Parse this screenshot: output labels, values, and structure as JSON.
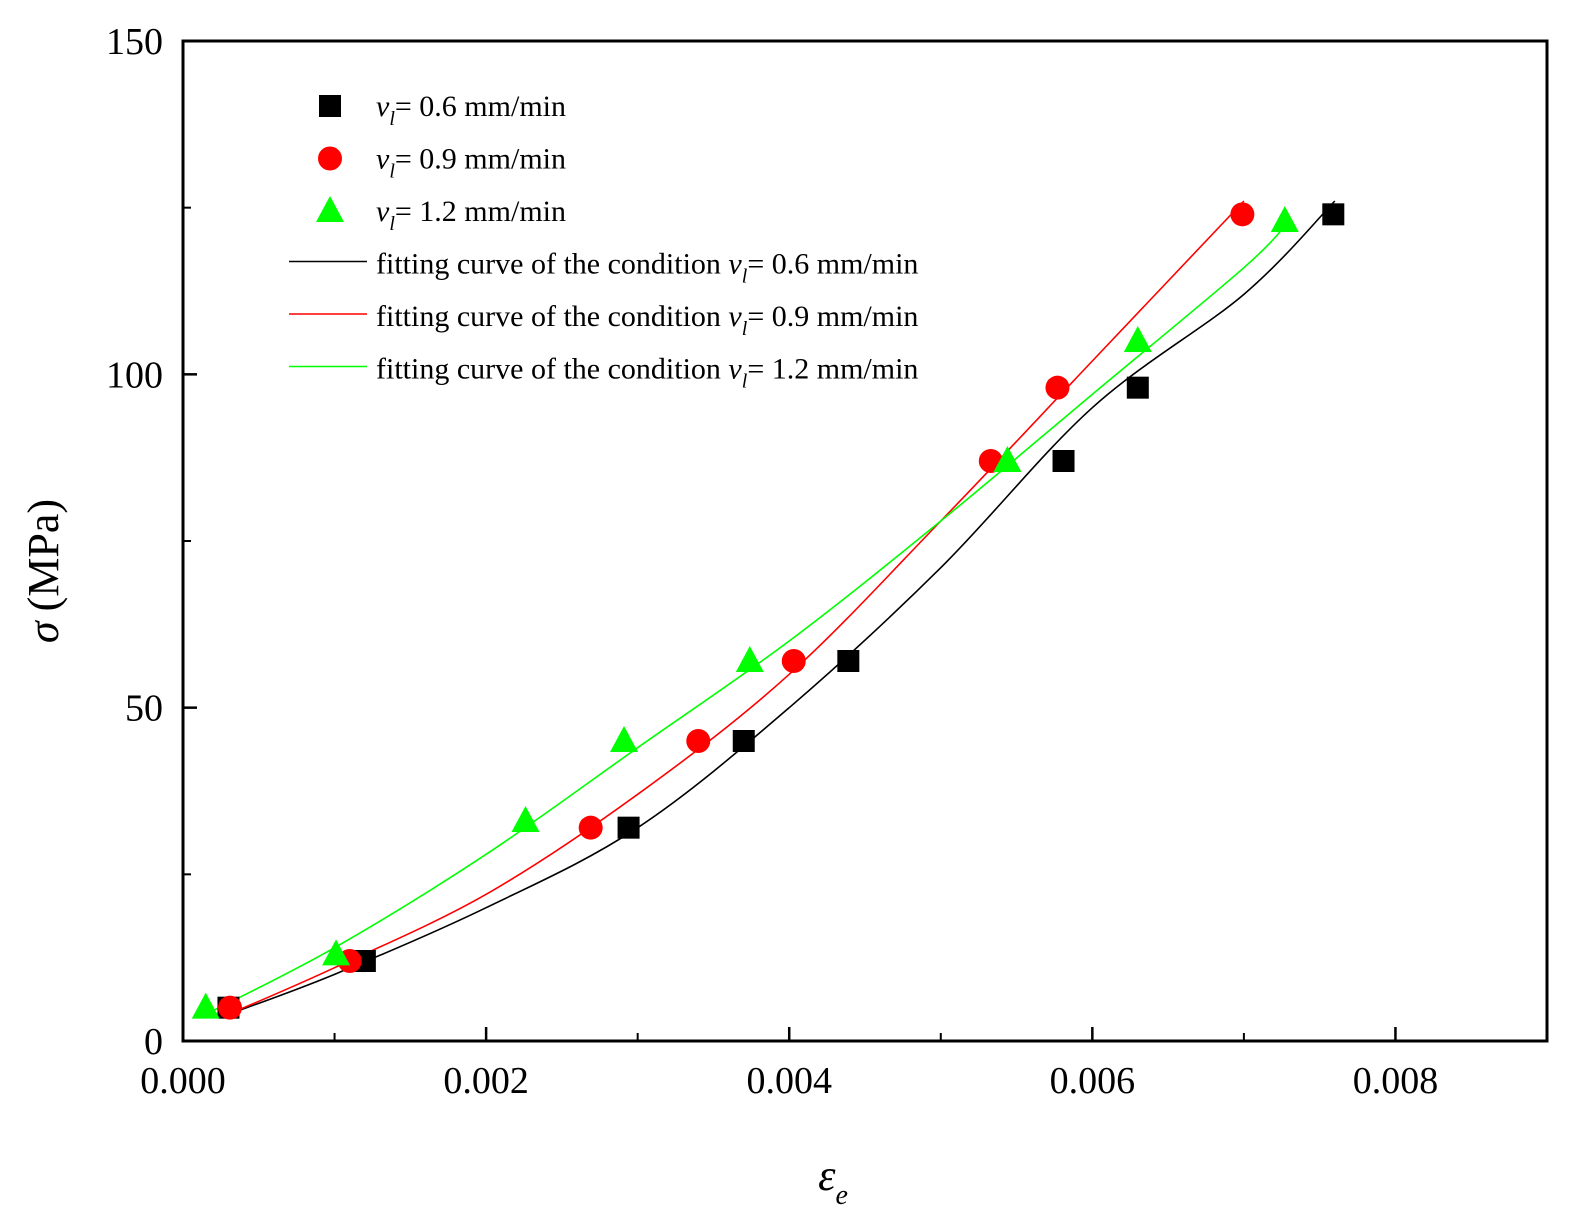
{
  "chart_data": {
    "type": "scatter",
    "xlabel": "ε",
    "xlabel_sub": "e",
    "ylabel_symbol": "σ",
    "ylabel_unit": "(MPa)",
    "xlim": [
      0,
      0.009
    ],
    "ylim": [
      0,
      150
    ],
    "x_ticks": [
      0.0,
      0.002,
      0.004,
      0.006,
      0.008
    ],
    "x_tick_labels": [
      "0.000",
      "0.002",
      "0.004",
      "0.006",
      "0.008"
    ],
    "x_minor_ticks": [
      0.001,
      0.003,
      0.005,
      0.007,
      0.009
    ],
    "y_ticks": [
      0,
      50,
      100,
      150
    ],
    "y_tick_labels": [
      "0",
      "50",
      "100",
      "150"
    ],
    "y_minor_ticks": [
      25,
      75,
      125
    ],
    "legend_position": "top-left",
    "series": [
      {
        "name": "v_l = 0.6 mm/min",
        "marker": "square",
        "color": "#000000",
        "legend_var": "v",
        "legend_sub": "l",
        "legend_rest": "= 0.6 mm/min",
        "x": [
          0.0003,
          0.0012,
          0.00294,
          0.0037,
          0.00439,
          0.00581,
          0.0063,
          0.00759
        ],
        "y": [
          5,
          12,
          32,
          45,
          57,
          87,
          98,
          124
        ]
      },
      {
        "name": "v_l = 0.9 mm/min",
        "marker": "circle",
        "color": "#ff0000",
        "legend_var": "v",
        "legend_sub": "l",
        "legend_rest": "= 0.9 mm/min",
        "x": [
          0.00031,
          0.0011,
          0.00269,
          0.0034,
          0.00403,
          0.00533,
          0.00577,
          0.00699
        ],
        "y": [
          5,
          12,
          32,
          45,
          57,
          87,
          98,
          124
        ]
      },
      {
        "name": "v_l = 1.2 mm/min",
        "marker": "triangle",
        "color": "#00ff00",
        "legend_var": "v",
        "legend_sub": "l",
        "legend_rest": "= 1.2 mm/min",
        "x": [
          0.00015,
          0.00101,
          0.00226,
          0.00291,
          0.00374,
          0.00544,
          0.0063,
          0.00727
        ],
        "y": [
          5,
          13,
          33,
          45,
          57,
          87,
          105,
          123
        ]
      }
    ],
    "fits": [
      {
        "name": "fitting curve of the condition v_l = 0.6 mm/min",
        "color": "#000000",
        "legend_prefix": "fitting curve of the condition ",
        "legend_var": "v",
        "legend_sub": "l",
        "legend_rest": "= 0.6 mm/min",
        "x": [
          0.0003,
          0.001,
          0.002,
          0.003,
          0.004,
          0.005,
          0.006,
          0.007,
          0.0076
        ],
        "y": [
          4,
          10,
          20,
          32,
          50,
          71,
          95,
          112,
          126
        ]
      },
      {
        "name": "fitting curve of the condition v_l = 0.9 mm/min",
        "color": "#ff0000",
        "legend_prefix": "fitting curve of the condition ",
        "legend_var": "v",
        "legend_sub": "l",
        "legend_rest": "= 0.9 mm/min",
        "x": [
          0.0003,
          0.001,
          0.002,
          0.003,
          0.004,
          0.005,
          0.006,
          0.007
        ],
        "y": [
          4,
          11,
          22,
          37,
          55,
          78,
          102,
          126
        ]
      },
      {
        "name": "fitting curve of the condition v_l = 1.2 mm/min",
        "color": "#00ff00",
        "legend_prefix": "fitting curve of the condition ",
        "legend_var": "v",
        "legend_sub": "l",
        "legend_rest": "= 1.2 mm/min",
        "x": [
          0.00015,
          0.001,
          0.002,
          0.003,
          0.004,
          0.005,
          0.006,
          0.007,
          0.0073
        ],
        "y": [
          4,
          14,
          28,
          44,
          60,
          78,
          97,
          116,
          123
        ]
      }
    ]
  }
}
